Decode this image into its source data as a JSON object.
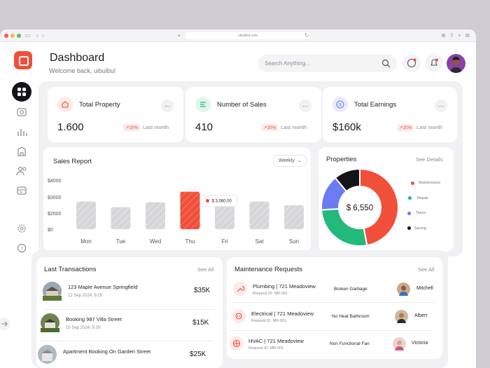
{
  "browser": {
    "url": "uibulbul.com"
  },
  "sidebar": {
    "logo": "quantum-logo",
    "items": [
      {
        "icon": "grid-icon"
      },
      {
        "icon": "camera-icon"
      },
      {
        "icon": "chart-bar-icon"
      },
      {
        "icon": "building-icon"
      },
      {
        "icon": "users-icon"
      },
      {
        "icon": "card-icon"
      },
      {
        "icon": "settings-icon"
      },
      {
        "icon": "help-icon"
      },
      {
        "icon": "logout-icon"
      }
    ]
  },
  "header": {
    "title": "Dashboard",
    "subtitle": "Welcome back, uibulbul",
    "search_placeholder": "Search Anything..."
  },
  "stats": [
    {
      "title": "Total Property",
      "value": "1.600",
      "change": "↗20%",
      "period": "Last month",
      "color": "#f0503a"
    },
    {
      "title": "Number of Sales",
      "value": "410",
      "change": "↗20%",
      "period": "Last month",
      "color": "#23b97a"
    },
    {
      "title": "Total Earnings",
      "value": "$160k",
      "change": "↗20%",
      "period": "Last month",
      "color": "#6c7bf2"
    }
  ],
  "sales_report": {
    "title": "Sales Report",
    "period": "Weekly",
    "tooltip": "$ 3,060.00",
    "y_ticks": [
      "$4000",
      "$3000",
      "$2000",
      "$0"
    ]
  },
  "chart_data": [
    {
      "type": "bar",
      "title": "Sales Report",
      "categories": [
        "Mon",
        "Tue",
        "Wed",
        "Thu",
        "Fri",
        "Sat",
        "Sun"
      ],
      "values": [
        2250,
        1800,
        2200,
        3060,
        2000,
        2250,
        1950
      ],
      "highlight": "Thu",
      "ylim": [
        0,
        4000
      ],
      "y_ticks": [
        0,
        2000,
        3000,
        4000
      ],
      "colors": {
        "bar": "#d7d7da",
        "highlight": "#f0503a"
      }
    },
    {
      "type": "pie",
      "title": "Properties",
      "center_label": "$ 6,550",
      "slices": [
        {
          "name": "Maintenance",
          "value": 47,
          "color": "#f0503a"
        },
        {
          "name": "Repair",
          "value": 27,
          "color": "#23b97a"
        },
        {
          "name": "Taxes",
          "value": 15,
          "color": "#6c7bf2"
        },
        {
          "name": "Saving",
          "value": 11,
          "color": "#141418"
        }
      ]
    }
  ],
  "properties": {
    "title": "Properties",
    "link": "See Details",
    "center": "$ 6,550",
    "legend": [
      "Maintenance",
      "Repair",
      "Taxes",
      "Saving"
    ]
  },
  "transactions": {
    "title": "Last Transactions",
    "link": "See All",
    "items": [
      {
        "title": "123 Maple Avenue Springfield",
        "date": "12 Sep 2024, 9:29",
        "amount": "$35K"
      },
      {
        "title": "Booking 987 Villa Street",
        "date": "10 Sep 2024, 9:29",
        "amount": "$15K"
      },
      {
        "title": "Apartment Booking On Garden Street",
        "date": "",
        "amount": "$25K"
      }
    ]
  },
  "maintenance": {
    "title": "Maintenance Requests",
    "link": "See All",
    "items": [
      {
        "title": "Plumbing | 721 Meadoview",
        "id": "Request ID: MR-001",
        "issue": "Broken Garbage",
        "name": "Mitchell"
      },
      {
        "title": "Electrical | 721 Meadoview",
        "id": "Request ID: MR-001",
        "issue": "No Heat Bathroom",
        "name": "Albert"
      },
      {
        "title": "HVAC | 721 Meadoview",
        "id": "Request ID: MR-001",
        "issue": "Non Functional Fan",
        "name": "Victoria"
      }
    ]
  }
}
